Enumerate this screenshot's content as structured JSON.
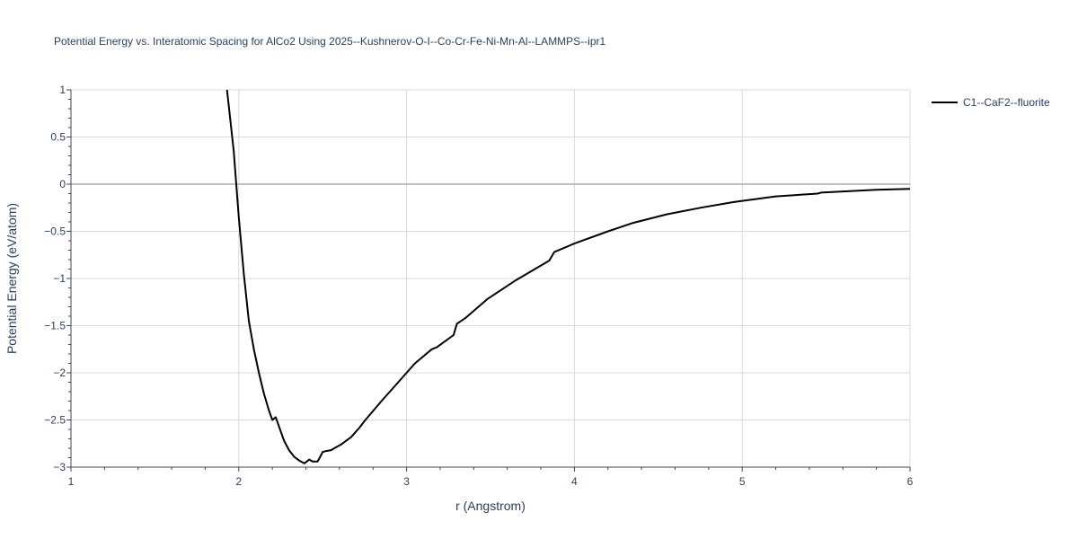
{
  "chart_data": {
    "type": "line",
    "title": "Potential Energy vs. Interatomic Spacing for AlCo2 Using 2025--Kushnerov-O-I--Co-Cr-Fe-Ni-Mn-Al--LAMMPS--ipr1",
    "xlabel": "r (Angstrom)",
    "ylabel": "Potential Energy (eV/atom)",
    "xlim": [
      1,
      6
    ],
    "ylim": [
      -3,
      1
    ],
    "x_ticks": [
      1,
      2,
      3,
      4,
      5,
      6
    ],
    "x_tick_labels": [
      "1",
      "2",
      "3",
      "4",
      "5",
      "6"
    ],
    "y_ticks": [
      1,
      0.5,
      0,
      -0.5,
      -1,
      -1.5,
      -2,
      -2.5,
      -3
    ],
    "y_tick_labels": [
      "1",
      "0.5",
      "0",
      "−0.5",
      "−1",
      "−1.5",
      "−2",
      "−2.5",
      "−3"
    ],
    "grid": true,
    "legend_position": "top-right",
    "colors": {
      "line": "#000000",
      "grid": "#d9d9d9",
      "zero_line": "#bfbfbf",
      "text": "#2a3f5f"
    },
    "series": [
      {
        "name": "C1--CaF2--fluorite",
        "x": [
          1.93,
          1.97,
          2.0,
          2.03,
          2.06,
          2.09,
          2.12,
          2.15,
          2.18,
          2.2,
          2.22,
          2.24,
          2.27,
          2.3,
          2.33,
          2.36,
          2.39,
          2.42,
          2.44,
          2.47,
          2.5,
          2.52,
          2.55,
          2.58,
          2.61,
          2.64,
          2.67,
          2.7,
          2.72,
          2.75,
          2.85,
          2.95,
          3.05,
          3.15,
          3.18,
          3.28,
          3.3,
          3.35,
          3.48,
          3.65,
          3.85,
          3.88,
          4.0,
          4.2,
          4.35,
          4.55,
          4.75,
          4.95,
          5.2,
          5.45,
          5.47,
          5.8,
          6.0
        ],
        "y": [
          1.0,
          0.35,
          -0.35,
          -0.95,
          -1.45,
          -1.75,
          -2.0,
          -2.22,
          -2.4,
          -2.5,
          -2.47,
          -2.57,
          -2.72,
          -2.82,
          -2.89,
          -2.93,
          -2.96,
          -2.92,
          -2.94,
          -2.94,
          -2.84,
          -2.83,
          -2.82,
          -2.79,
          -2.76,
          -2.72,
          -2.68,
          -2.62,
          -2.58,
          -2.51,
          -2.3,
          -2.1,
          -1.9,
          -1.75,
          -1.73,
          -1.6,
          -1.48,
          -1.42,
          -1.22,
          -1.02,
          -0.81,
          -0.72,
          -0.63,
          -0.5,
          -0.41,
          -0.32,
          -0.25,
          -0.19,
          -0.13,
          -0.1,
          -0.09,
          -0.06,
          -0.05
        ]
      }
    ]
  }
}
